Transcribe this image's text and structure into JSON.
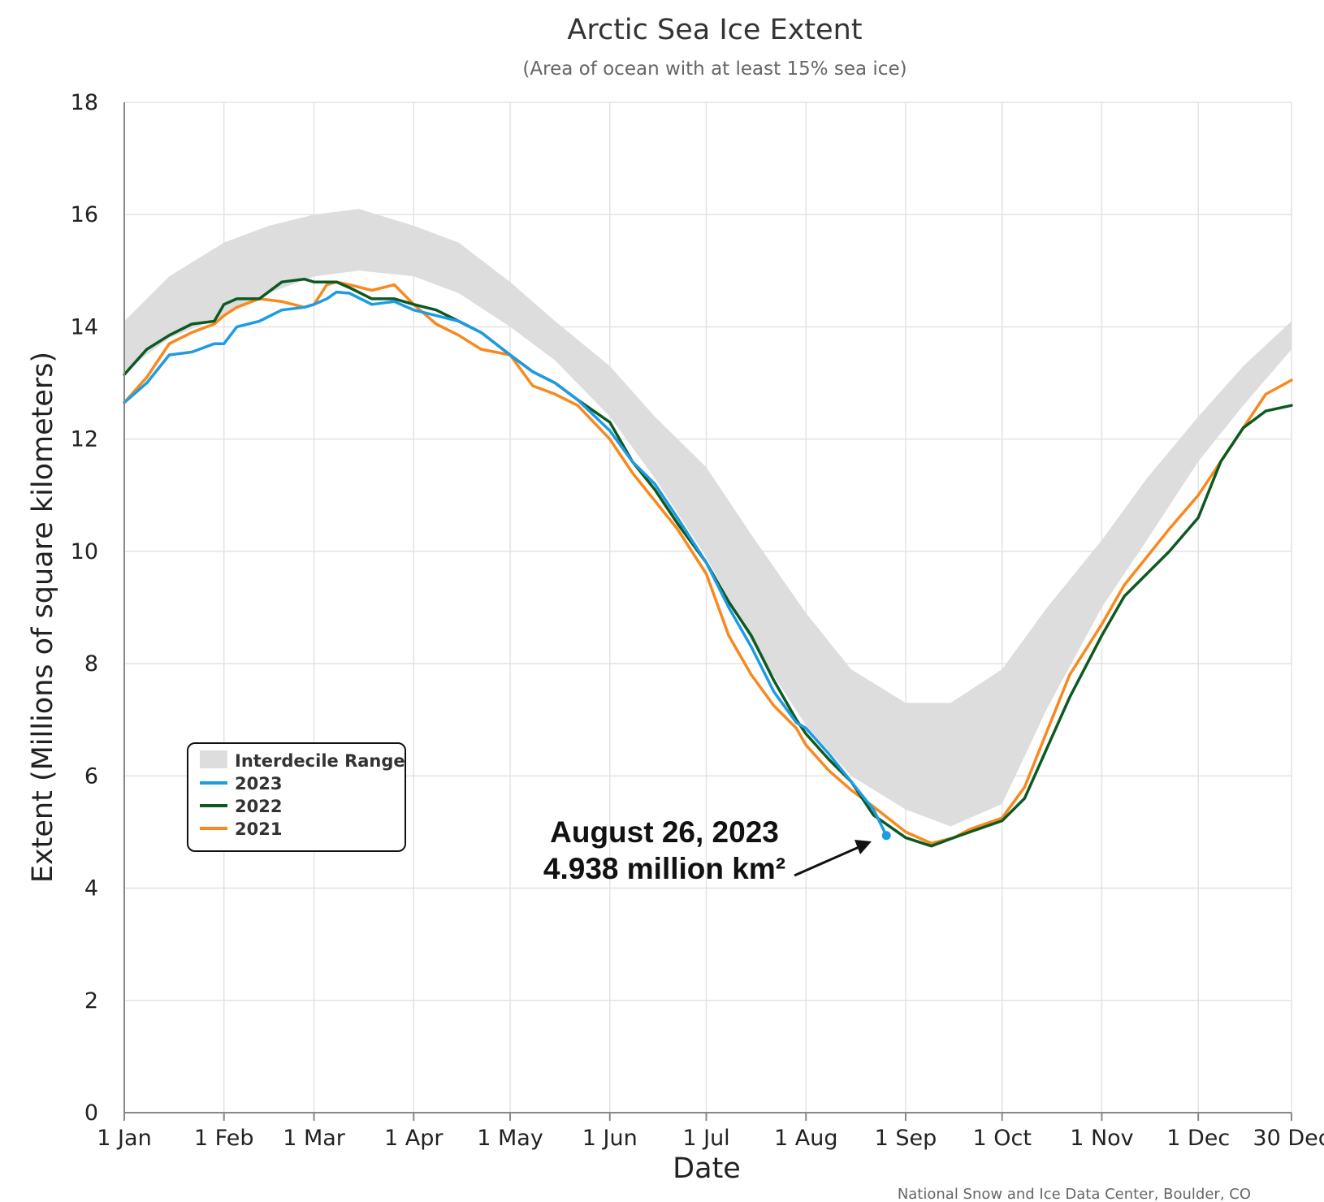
{
  "chart_data": {
    "type": "line",
    "title": "Arctic Sea Ice Extent",
    "subtitle": "(Area of ocean with at least 15% sea ice)",
    "xlabel": "Date",
    "ylabel": "Extent (Millions of square kilometers)",
    "x_ticks": [
      "1 Jan",
      "1 Feb",
      "1 Mar",
      "1 Apr",
      "1 May",
      "1 Jun",
      "1 Jul",
      "1 Aug",
      "1 Sep",
      "1 Oct",
      "1 Nov",
      "1 Dec",
      "30 Dec"
    ],
    "x_tick_days": [
      1,
      32,
      60,
      91,
      121,
      152,
      182,
      213,
      244,
      274,
      305,
      335,
      364
    ],
    "x_range_days": [
      1,
      364
    ],
    "y_ticks": [
      0,
      2,
      4,
      6,
      8,
      10,
      12,
      14,
      16,
      18
    ],
    "ylim": [
      0,
      18
    ],
    "grid": true,
    "legend_position": "left-middle",
    "interdecile_range": {
      "name": "Interdecile Range",
      "color": "#dddddd",
      "x": [
        1,
        15,
        32,
        46,
        60,
        74,
        91,
        105,
        121,
        135,
        152,
        166,
        182,
        196,
        213,
        227,
        244,
        258,
        274,
        288,
        305,
        319,
        335,
        349,
        364
      ],
      "low": [
        13.2,
        13.8,
        14.2,
        14.6,
        14.9,
        15.0,
        14.9,
        14.6,
        14.0,
        13.4,
        12.4,
        11.3,
        9.9,
        8.4,
        6.9,
        6.0,
        5.4,
        5.1,
        5.5,
        7.2,
        9.0,
        10.2,
        11.6,
        12.6,
        13.6
      ],
      "high": [
        14.1,
        14.9,
        15.5,
        15.8,
        16.0,
        16.1,
        15.8,
        15.5,
        14.8,
        14.1,
        13.3,
        12.4,
        11.5,
        10.3,
        8.9,
        7.9,
        7.3,
        7.3,
        7.9,
        9.0,
        10.2,
        11.3,
        12.4,
        13.3,
        14.1
      ]
    },
    "series": [
      {
        "name": "2023",
        "color": "#1e9be4",
        "x": [
          1,
          8,
          15,
          22,
          29,
          32,
          36,
          43,
          50,
          57,
          60,
          64,
          67,
          71,
          78,
          85,
          91,
          98,
          105,
          112,
          121,
          128,
          135,
          142,
          152,
          159,
          166,
          173,
          182,
          189,
          196,
          203,
          210,
          213,
          220,
          227,
          234,
          238
        ],
        "values": [
          12.65,
          13.0,
          13.5,
          13.55,
          13.7,
          13.7,
          14.0,
          14.1,
          14.3,
          14.35,
          14.4,
          14.5,
          14.62,
          14.6,
          14.4,
          14.45,
          14.3,
          14.2,
          14.1,
          13.9,
          13.5,
          13.2,
          13.0,
          12.7,
          12.15,
          11.6,
          11.2,
          10.6,
          9.8,
          9.0,
          8.3,
          7.5,
          6.95,
          6.85,
          6.4,
          5.9,
          5.4,
          4.938
        ]
      },
      {
        "name": "2022",
        "color": "#0c5a22",
        "x": [
          1,
          8,
          15,
          22,
          29,
          32,
          36,
          43,
          50,
          57,
          60,
          64,
          67,
          71,
          78,
          85,
          91,
          98,
          105,
          112,
          121,
          128,
          135,
          142,
          152,
          159,
          166,
          173,
          182,
          189,
          196,
          203,
          210,
          213,
          220,
          227,
          234,
          244,
          252,
          259,
          264,
          274,
          281,
          288,
          295,
          305,
          312,
          319,
          326,
          335,
          342,
          349,
          356,
          364
        ],
        "values": [
          13.15,
          13.6,
          13.85,
          14.05,
          14.1,
          14.4,
          14.5,
          14.5,
          14.8,
          14.85,
          14.8,
          14.8,
          14.8,
          14.7,
          14.5,
          14.5,
          14.4,
          14.3,
          14.1,
          13.9,
          13.5,
          13.2,
          13.0,
          12.7,
          12.3,
          11.6,
          11.1,
          10.5,
          9.8,
          9.1,
          8.5,
          7.7,
          7.0,
          6.75,
          6.3,
          5.9,
          5.3,
          4.9,
          4.75,
          4.9,
          5.0,
          5.2,
          5.6,
          6.5,
          7.4,
          8.5,
          9.2,
          9.6,
          10.0,
          10.6,
          11.6,
          12.2,
          12.5,
          12.6
        ]
      },
      {
        "name": "2021",
        "color": "#f7891f",
        "x": [
          1,
          8,
          15,
          22,
          29,
          32,
          36,
          43,
          50,
          57,
          60,
          64,
          67,
          71,
          78,
          85,
          91,
          98,
          105,
          112,
          121,
          128,
          135,
          142,
          152,
          159,
          166,
          173,
          182,
          189,
          196,
          203,
          210,
          213,
          220,
          227,
          234,
          244,
          252,
          259,
          264,
          274,
          281,
          288,
          295,
          305,
          312,
          319,
          326,
          335,
          342,
          349,
          356,
          364
        ],
        "values": [
          12.65,
          13.1,
          13.7,
          13.9,
          14.05,
          14.2,
          14.35,
          14.5,
          14.45,
          14.35,
          14.4,
          14.75,
          14.8,
          14.75,
          14.65,
          14.75,
          14.4,
          14.05,
          13.85,
          13.6,
          13.5,
          12.95,
          12.8,
          12.6,
          12.0,
          11.4,
          10.9,
          10.4,
          9.6,
          8.5,
          7.8,
          7.25,
          6.85,
          6.55,
          6.1,
          5.75,
          5.45,
          5.0,
          4.8,
          4.9,
          5.05,
          5.25,
          5.8,
          6.8,
          7.8,
          8.7,
          9.4,
          9.9,
          10.4,
          11.0,
          11.6,
          12.2,
          12.8,
          13.05
        ]
      }
    ],
    "highlight_point": {
      "series": "2023",
      "x": 238,
      "y": 4.938
    },
    "annotation": {
      "line1": "August 26, 2023",
      "line2": "4.938 million km²"
    },
    "credit": "National Snow and Ice Data Center, Boulder, CO"
  }
}
